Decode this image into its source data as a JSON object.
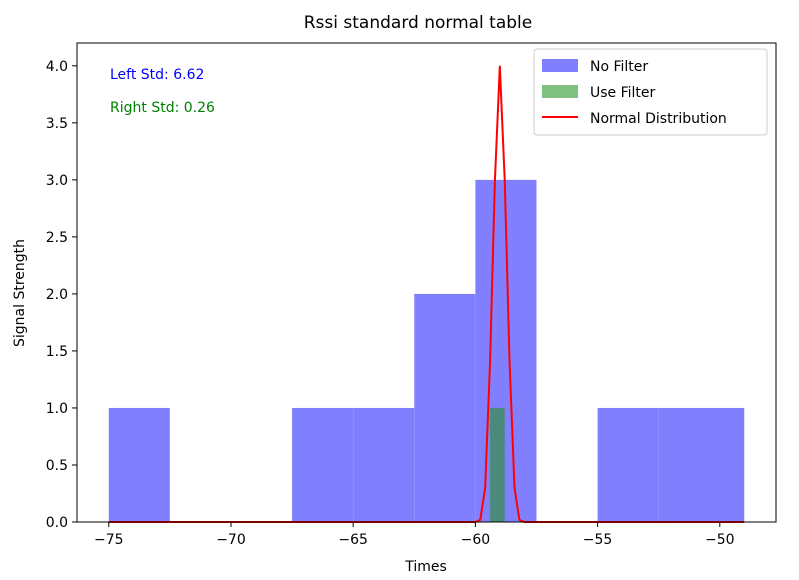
{
  "chart_data": {
    "type": "bar",
    "title": "Rssi standard normal table",
    "xlabel": "Times",
    "ylabel": "Signal Strength",
    "xlim": [
      -76.3,
      -47.7
    ],
    "ylim": [
      0,
      4.2
    ],
    "xticks": [
      -75,
      -70,
      -65,
      -60,
      -55,
      -50
    ],
    "yticks": [
      0.0,
      0.5,
      1.0,
      1.5,
      2.0,
      2.5,
      3.0,
      3.5,
      4.0
    ],
    "grid": false,
    "legend_position": "top-right",
    "annotations": [
      {
        "text": "Left Std: 6.62",
        "color": "#0000ff"
      },
      {
        "text": "Right Std: 0.26",
        "color": "#008000"
      }
    ],
    "series": [
      {
        "name": "No Filter",
        "kind": "histogram",
        "color": "#8080ff",
        "bins": [
          {
            "x0": -75.0,
            "x1": -72.5,
            "value": 1
          },
          {
            "x0": -72.5,
            "x1": -70.0,
            "value": 0
          },
          {
            "x0": -70.0,
            "x1": -67.5,
            "value": 0
          },
          {
            "x0": -67.5,
            "x1": -65.0,
            "value": 1
          },
          {
            "x0": -65.0,
            "x1": -62.5,
            "value": 1
          },
          {
            "x0": -62.5,
            "x1": -60.0,
            "value": 2
          },
          {
            "x0": -60.0,
            "x1": -57.5,
            "value": 3
          },
          {
            "x0": -57.5,
            "x1": -55.0,
            "value": 0
          },
          {
            "x0": -55.0,
            "x1": -52.5,
            "value": 1
          },
          {
            "x0": -52.5,
            "x1": -49.0,
            "value": 1
          }
        ]
      },
      {
        "name": "Use Filter",
        "kind": "histogram",
        "color": "#4a8a7a",
        "legend_color": "#80c080",
        "bins": [
          {
            "x0": -59.4,
            "x1": -59.1,
            "value": 1
          },
          {
            "x0": -59.1,
            "x1": -58.8,
            "value": 1
          }
        ]
      },
      {
        "name": "Normal Distribution",
        "kind": "line",
        "color": "#ff0000",
        "x": [
          -75,
          -70,
          -65,
          -60,
          -59.8,
          -59.6,
          -59.4,
          -59.2,
          -59.0,
          -58.8,
          -58.6,
          -58.4,
          -58.2,
          -58.0,
          -55,
          -50,
          -49
        ],
        "y": [
          0,
          0,
          0,
          0,
          0.02,
          0.3,
          1.4,
          3.0,
          4.0,
          3.0,
          1.4,
          0.3,
          0.02,
          0,
          0,
          0,
          0
        ]
      }
    ]
  }
}
